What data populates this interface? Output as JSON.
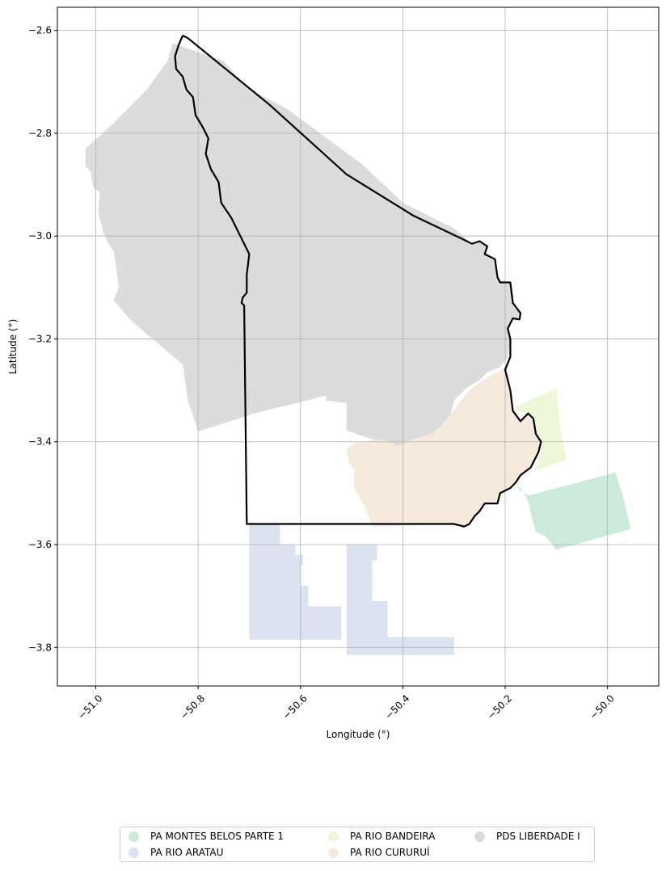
{
  "chart_data": {
    "type": "map",
    "xlabel": "Longitude (°)",
    "ylabel": "Latitude (°)",
    "xlim": [
      -51.075,
      -49.9
    ],
    "ylim": [
      -3.875,
      -2.555
    ],
    "x_ticks": [
      -51.0,
      -50.8,
      -50.6,
      -50.4,
      -50.2,
      -50.0
    ],
    "x_tick_labels": [
      "−51.0",
      "−50.8",
      "−50.6",
      "−50.4",
      "−50.2",
      "−50.0"
    ],
    "y_ticks": [
      -2.6,
      -2.8,
      -3.0,
      -3.2,
      -3.4,
      -3.6,
      -3.8
    ],
    "y_tick_labels": [
      "−2.6",
      "−2.8",
      "−3.0",
      "−3.2",
      "−3.4",
      "−3.6",
      "−3.8"
    ],
    "grid": true,
    "legend_position": "bottom-center",
    "boundary": {
      "name": "study-area-outline",
      "color": "#000000",
      "coords": [
        [
          -50.83,
          -2.61
        ],
        [
          -50.82,
          -2.615
        ],
        [
          -50.66,
          -2.745
        ],
        [
          -50.51,
          -2.88
        ],
        [
          -50.38,
          -2.96
        ],
        [
          -50.285,
          -3.005
        ],
        [
          -50.265,
          -3.015
        ],
        [
          -50.25,
          -3.01
        ],
        [
          -50.235,
          -3.02
        ],
        [
          -50.24,
          -3.035
        ],
        [
          -50.22,
          -3.045
        ],
        [
          -50.215,
          -3.08
        ],
        [
          -50.21,
          -3.09
        ],
        [
          -50.19,
          -3.09
        ],
        [
          -50.185,
          -3.13
        ],
        [
          -50.17,
          -3.15
        ],
        [
          -50.172,
          -3.162
        ],
        [
          -50.185,
          -3.16
        ],
        [
          -50.195,
          -3.18
        ],
        [
          -50.19,
          -3.2
        ],
        [
          -50.19,
          -3.235
        ],
        [
          -50.2,
          -3.26
        ],
        [
          -50.19,
          -3.3
        ],
        [
          -50.185,
          -3.34
        ],
        [
          -50.17,
          -3.36
        ],
        [
          -50.155,
          -3.345
        ],
        [
          -50.145,
          -3.355
        ],
        [
          -50.14,
          -3.385
        ],
        [
          -50.13,
          -3.4
        ],
        [
          -50.135,
          -3.42
        ],
        [
          -50.15,
          -3.45
        ],
        [
          -50.17,
          -3.465
        ],
        [
          -50.18,
          -3.48
        ],
        [
          -50.19,
          -3.49
        ],
        [
          -50.21,
          -3.5
        ],
        [
          -50.215,
          -3.52
        ],
        [
          -50.24,
          -3.52
        ],
        [
          -50.25,
          -3.535
        ],
        [
          -50.26,
          -3.545
        ],
        [
          -50.27,
          -3.56
        ],
        [
          -50.28,
          -3.565
        ],
        [
          -50.3,
          -3.56
        ],
        [
          -50.705,
          -3.56
        ],
        [
          -50.71,
          -3.135
        ],
        [
          -50.715,
          -3.13
        ],
        [
          -50.713,
          -3.12
        ],
        [
          -50.705,
          -3.11
        ],
        [
          -50.705,
          -3.075
        ],
        [
          -50.7,
          -3.035
        ],
        [
          -50.72,
          -2.995
        ],
        [
          -50.735,
          -2.965
        ],
        [
          -50.755,
          -2.935
        ],
        [
          -50.76,
          -2.895
        ],
        [
          -50.775,
          -2.87
        ],
        [
          -50.785,
          -2.84
        ],
        [
          -50.78,
          -2.81
        ],
        [
          -50.79,
          -2.79
        ],
        [
          -50.805,
          -2.765
        ],
        [
          -50.81,
          -2.73
        ],
        [
          -50.823,
          -2.715
        ],
        [
          -50.83,
          -2.69
        ],
        [
          -50.843,
          -2.675
        ],
        [
          -50.845,
          -2.65
        ],
        [
          -50.838,
          -2.628
        ],
        [
          -50.83,
          -2.61
        ]
      ]
    },
    "series": [
      {
        "name": "PDS LIBERDADE I",
        "color": "#dcdcdc",
        "polygons": [
          [
            [
              -50.85,
              -2.625
            ],
            [
              -50.75,
              -2.66
            ],
            [
              -50.7,
              -2.715
            ],
            [
              -50.63,
              -2.75
            ],
            [
              -50.48,
              -2.86
            ],
            [
              -50.4,
              -2.935
            ],
            [
              -50.3,
              -2.985
            ],
            [
              -50.265,
              -3.015
            ],
            [
              -50.25,
              -3.01
            ],
            [
              -50.235,
              -3.02
            ],
            [
              -50.24,
              -3.035
            ],
            [
              -50.22,
              -3.045
            ],
            [
              -50.215,
              -3.08
            ],
            [
              -50.21,
              -3.09
            ],
            [
              -50.19,
              -3.09
            ],
            [
              -50.185,
              -3.13
            ],
            [
              -50.17,
              -3.15
            ],
            [
              -50.172,
              -3.162
            ],
            [
              -50.185,
              -3.16
            ],
            [
              -50.195,
              -3.18
            ],
            [
              -50.19,
              -3.2
            ],
            [
              -50.195,
              -3.235
            ],
            [
              -50.21,
              -3.255
            ],
            [
              -50.235,
              -3.265
            ],
            [
              -50.25,
              -3.28
            ],
            [
              -50.275,
              -3.295
            ],
            [
              -50.3,
              -3.32
            ],
            [
              -50.31,
              -3.36
            ],
            [
              -50.325,
              -3.38
            ],
            [
              -50.345,
              -3.39
            ],
            [
              -50.38,
              -3.4
            ],
            [
              -50.41,
              -3.41
            ],
            [
              -50.44,
              -3.4
            ],
            [
              -50.46,
              -3.395
            ],
            [
              -50.49,
              -3.385
            ],
            [
              -50.51,
              -3.378
            ],
            [
              -50.51,
              -3.325
            ],
            [
              -50.55,
              -3.32
            ],
            [
              -50.55,
              -3.31
            ],
            [
              -50.58,
              -3.318
            ],
            [
              -50.69,
              -3.345
            ],
            [
              -50.8,
              -3.38
            ],
            [
              -50.82,
              -3.32
            ],
            [
              -50.83,
              -3.25
            ],
            [
              -50.93,
              -3.165
            ],
            [
              -50.965,
              -3.125
            ],
            [
              -50.955,
              -3.1
            ],
            [
              -50.96,
              -3.06
            ],
            [
              -50.965,
              -3.03
            ],
            [
              -50.975,
              -3.015
            ],
            [
              -50.985,
              -2.995
            ],
            [
              -50.995,
              -2.955
            ],
            [
              -50.992,
              -2.915
            ],
            [
              -51.005,
              -2.905
            ],
            [
              -51.01,
              -2.875
            ],
            [
              -51.02,
              -2.865
            ],
            [
              -51.02,
              -2.83
            ],
            [
              -50.97,
              -2.785
            ],
            [
              -50.9,
              -2.715
            ],
            [
              -50.86,
              -2.66
            ],
            [
              -50.85,
              -2.625
            ]
          ]
        ]
      },
      {
        "name": "PA RIO CURURUÍ",
        "color": "#f5eadc",
        "polygons": [
          [
            [
              -50.2,
              -3.255
            ],
            [
              -50.19,
              -3.3
            ],
            [
              -50.185,
              -3.34
            ],
            [
              -50.17,
              -3.36
            ],
            [
              -50.155,
              -3.345
            ],
            [
              -50.145,
              -3.355
            ],
            [
              -50.14,
              -3.385
            ],
            [
              -50.13,
              -3.4
            ],
            [
              -50.135,
              -3.42
            ],
            [
              -50.15,
              -3.45
            ],
            [
              -50.17,
              -3.465
            ],
            [
              -50.18,
              -3.48
            ],
            [
              -50.19,
              -3.49
            ],
            [
              -50.21,
              -3.5
            ],
            [
              -50.215,
              -3.52
            ],
            [
              -50.24,
              -3.52
            ],
            [
              -50.25,
              -3.535
            ],
            [
              -50.26,
              -3.545
            ],
            [
              -50.27,
              -3.56
            ],
            [
              -50.28,
              -3.565
            ],
            [
              -50.3,
              -3.56
            ],
            [
              -50.46,
              -3.565
            ],
            [
              -50.475,
              -3.525
            ],
            [
              -50.495,
              -3.49
            ],
            [
              -50.495,
              -3.455
            ],
            [
              -50.505,
              -3.44
            ],
            [
              -50.51,
              -3.415
            ],
            [
              -50.49,
              -3.4
            ],
            [
              -50.44,
              -3.395
            ],
            [
              -50.41,
              -3.408
            ],
            [
              -50.38,
              -3.395
            ],
            [
              -50.345,
              -3.385
            ],
            [
              -50.325,
              -3.37
            ],
            [
              -50.31,
              -3.35
            ],
            [
              -50.29,
              -3.325
            ],
            [
              -50.27,
              -3.3
            ],
            [
              -50.25,
              -3.285
            ],
            [
              -50.225,
              -3.27
            ],
            [
              -50.2,
              -3.255
            ]
          ]
        ]
      },
      {
        "name": "PA RIO BANDEIRA",
        "color": "#eef8d8",
        "polygons": [
          [
            [
              -50.185,
              -3.335
            ],
            [
              -50.1,
              -3.295
            ],
            [
              -50.095,
              -3.355
            ],
            [
              -50.08,
              -3.435
            ],
            [
              -50.14,
              -3.455
            ],
            [
              -50.13,
              -3.42
            ],
            [
              -50.135,
              -3.395
            ],
            [
              -50.145,
              -3.36
            ],
            [
              -50.16,
              -3.345
            ],
            [
              -50.185,
              -3.335
            ]
          ]
        ]
      },
      {
        "name": "PA MONTES BELOS PARTE 1",
        "color": "#cbeadb",
        "polygons": [
          [
            [
              -50.18,
              -3.48
            ],
            [
              -50.17,
              -3.49
            ],
            [
              -50.155,
              -3.515
            ],
            [
              -50.15,
              -3.54
            ],
            [
              -50.14,
              -3.575
            ],
            [
              -50.12,
              -3.585
            ],
            [
              -50.1,
              -3.61
            ],
            [
              -49.955,
              -3.57
            ],
            [
              -49.97,
              -3.505
            ],
            [
              -49.985,
              -3.46
            ],
            [
              -50.155,
              -3.505
            ],
            [
              -50.17,
              -3.495
            ],
            [
              -50.18,
              -3.48
            ]
          ]
        ]
      },
      {
        "name": "PA RIO ARATAU",
        "color": "#dde2f1",
        "polygons": [
          [
            [
              -50.7,
              -3.56
            ],
            [
              -50.64,
              -3.56
            ],
            [
              -50.64,
              -3.6
            ],
            [
              -50.61,
              -3.6
            ],
            [
              -50.61,
              -3.62
            ],
            [
              -50.595,
              -3.62
            ],
            [
              -50.595,
              -3.64
            ],
            [
              -50.6,
              -3.64
            ],
            [
              -50.6,
              -3.68
            ],
            [
              -50.585,
              -3.68
            ],
            [
              -50.585,
              -3.72
            ],
            [
              -50.52,
              -3.72
            ],
            [
              -50.52,
              -3.785
            ],
            [
              -50.7,
              -3.785
            ],
            [
              -50.7,
              -3.56
            ]
          ],
          [
            [
              -50.51,
              -3.6
            ],
            [
              -50.45,
              -3.6
            ],
            [
              -50.45,
              -3.63
            ],
            [
              -50.46,
              -3.63
            ],
            [
              -50.46,
              -3.71
            ],
            [
              -50.43,
              -3.71
            ],
            [
              -50.43,
              -3.78
            ],
            [
              -50.3,
              -3.78
            ],
            [
              -50.3,
              -3.815
            ],
            [
              -50.51,
              -3.815
            ],
            [
              -50.51,
              -3.6
            ]
          ]
        ]
      }
    ]
  },
  "legend": {
    "items": [
      {
        "label": "PA MONTES BELOS PARTE 1",
        "color": "#cbeadb"
      },
      {
        "label": "PA RIO ARATAU",
        "color": "#dde2f1"
      },
      {
        "label": "PA RIO BANDEIRA",
        "color": "#eef8d8"
      },
      {
        "label": "PA RIO CURURUÍ",
        "color": "#f5eadc"
      },
      {
        "label": "PDS LIBERDADE I",
        "color": "#dcdcdc"
      }
    ]
  }
}
